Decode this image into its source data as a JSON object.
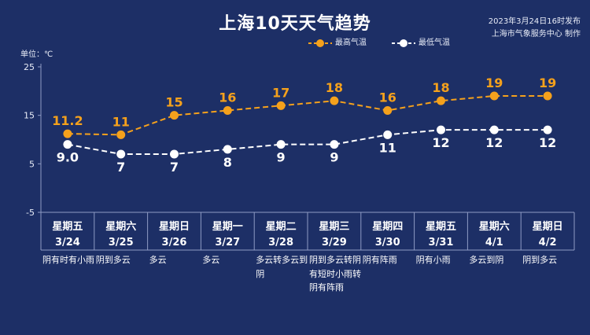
{
  "header": {
    "title": "上海10天天气趋势",
    "publish_time": "2023年3月24日16时发布",
    "publisher": "上海市气象服务中心 制作",
    "unit_label": "单位：℃"
  },
  "colors": {
    "background": "#1d2f66",
    "high": "#f5a11c",
    "low": "#ffffff",
    "grid": "#8e9bc4"
  },
  "chart_data": {
    "type": "line",
    "title": "上海10天天气趋势",
    "ylabel": "单位：℃",
    "ylim": [
      -5,
      25
    ],
    "yticks": [
      -5,
      5,
      15,
      25
    ],
    "categories": [
      {
        "weekday": "星期五",
        "date": "3/24"
      },
      {
        "weekday": "星期六",
        "date": "3/25"
      },
      {
        "weekday": "星期日",
        "date": "3/26"
      },
      {
        "weekday": "星期一",
        "date": "3/27"
      },
      {
        "weekday": "星期二",
        "date": "3/28"
      },
      {
        "weekday": "星期三",
        "date": "3/29"
      },
      {
        "weekday": "星期四",
        "date": "3/30"
      },
      {
        "weekday": "星期五",
        "date": "3/31"
      },
      {
        "weekday": "星期六",
        "date": "4/1"
      },
      {
        "weekday": "星期日",
        "date": "4/2"
      }
    ],
    "series": [
      {
        "name": "最高气温",
        "color": "#f5a11c",
        "style": "dashed",
        "values": [
          11.2,
          11,
          15,
          16,
          17,
          18,
          16,
          18,
          19,
          19
        ],
        "labels": [
          "11.2",
          "11",
          "15",
          "16",
          "17",
          "18",
          "16",
          "18",
          "19",
          "19"
        ]
      },
      {
        "name": "最低气温",
        "color": "#ffffff",
        "style": "dashed",
        "values": [
          9.0,
          7,
          7,
          8,
          9,
          9,
          11,
          12,
          12,
          12
        ],
        "labels": [
          "9.0",
          "7",
          "7",
          "8",
          "9",
          "9",
          "11",
          "12",
          "12",
          "12"
        ]
      }
    ],
    "legend": "top-center",
    "grid": false
  },
  "weather": [
    "阴有时有小雨",
    "阴到多云",
    "多云",
    "多云",
    "多云转多云到阴",
    "阴到多云转阴有短时小雨转阴有阵雨",
    "阴有阵雨",
    "阴有小雨",
    "多云到阴",
    "阴到多云"
  ]
}
